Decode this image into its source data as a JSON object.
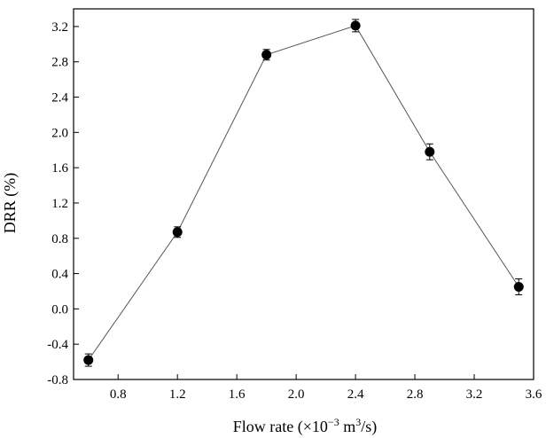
{
  "chart_data": {
    "type": "scatter",
    "xlabel_main": "Flow rate (×10",
    "xlabel_exp": "−3",
    "xlabel_mid": " m",
    "xlabel_exp2": "3",
    "xlabel_end": "/s)",
    "ylabel": "DRR (%)",
    "xlim": [
      0.5,
      3.6
    ],
    "ylim": [
      -0.8,
      3.4
    ],
    "xticks": [
      0.8,
      1.2,
      1.6,
      2.0,
      2.4,
      2.8,
      3.2,
      3.6
    ],
    "xtick_labels": [
      "0.8",
      "1.2",
      "1.6",
      "2.0",
      "2.4",
      "2.8",
      "3.2",
      "3.6"
    ],
    "yticks": [
      -0.8,
      -0.4,
      0.0,
      0.4,
      0.8,
      1.2,
      1.6,
      2.0,
      2.4,
      2.8,
      3.2
    ],
    "ytick_labels": [
      "-0.8",
      "-0.4",
      "0.0",
      "0.4",
      "0.8",
      "1.2",
      "1.6",
      "2.0",
      "2.4",
      "2.8",
      "3.2"
    ],
    "grid": false,
    "series": [
      {
        "x": [
          0.6,
          1.2,
          1.8,
          2.4,
          2.9,
          3.5
        ],
        "y": [
          -0.58,
          0.87,
          2.88,
          3.21,
          1.78,
          0.25
        ],
        "err": [
          0.07,
          0.06,
          0.06,
          0.07,
          0.09,
          0.09
        ],
        "marker_color": "#000000",
        "line_color": "#555555"
      }
    ]
  }
}
